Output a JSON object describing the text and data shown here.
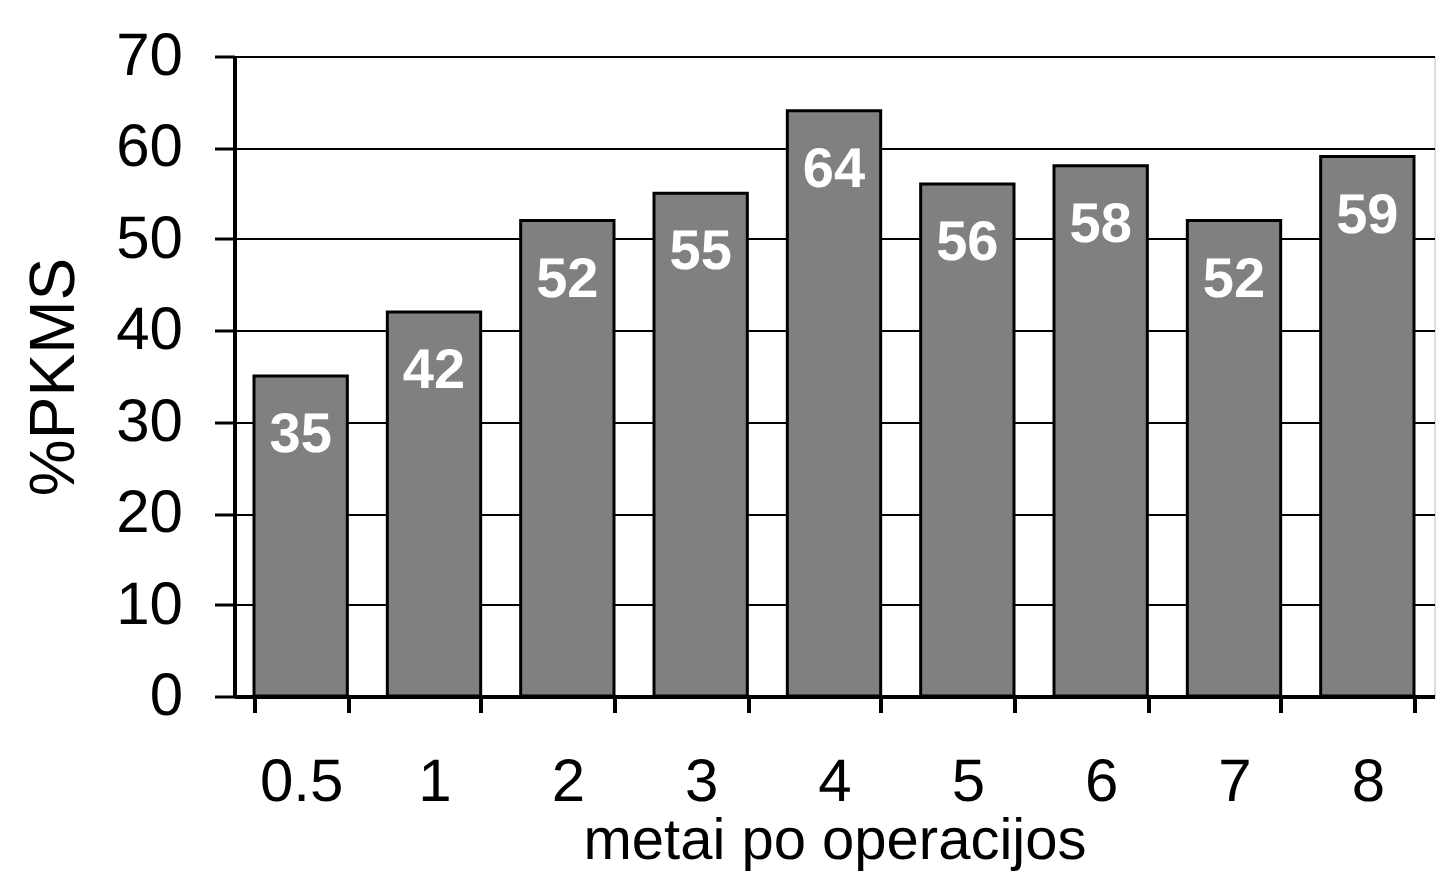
{
  "chart_data": {
    "type": "bar",
    "xlabel": "metai po operacijos",
    "ylabel": "%PKMS",
    "categories": [
      "0.5",
      "1",
      "2",
      "3",
      "4",
      "5",
      "6",
      "7",
      "8"
    ],
    "values": [
      35,
      42,
      52,
      55,
      64,
      56,
      58,
      52,
      59
    ],
    "color": "#808080",
    "ylim": [
      0,
      70
    ],
    "yticks": [
      0,
      10,
      20,
      30,
      40,
      50,
      60,
      70
    ],
    "grid": "y",
    "data_labels": true
  }
}
